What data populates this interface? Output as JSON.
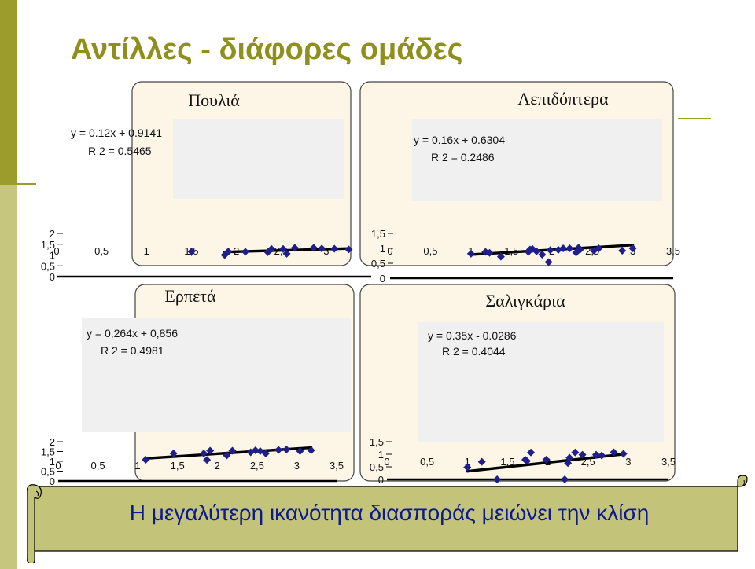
{
  "slide": {
    "title": "Αντίλλες - διάφορες ομάδες",
    "conclusion": "Η μεγαλύτερη ικανότητα διασποράς μειώνει την κλίση"
  },
  "colors": {
    "accent": "#9c9c2c",
    "panel_bg": "#fdf5e6",
    "plot_bg": "#f0f0f0",
    "marker": "#1f1f8c",
    "text_blue": "#0b1a8c"
  },
  "chart_data": [
    {
      "type": "scatter",
      "title": "Πουλιά",
      "xlim": [
        0,
        3.5
      ],
      "ylim": [
        0,
        2
      ],
      "xticks": [
        "0",
        "0,5",
        "1",
        "1,5",
        "2",
        "2,5",
        "3",
        "3,5"
      ],
      "yticks": [
        "0",
        "0,5",
        "1",
        "1,5",
        "2"
      ],
      "x": [
        1.5,
        1.87,
        1.91,
        2.1,
        2.35,
        2.39,
        2.52,
        2.56,
        2.65,
        2.86,
        2.95,
        3.09,
        3.25
      ],
      "y": [
        1.16,
        1.0,
        1.16,
        1.15,
        1.13,
        1.28,
        1.28,
        1.06,
        1.33,
        1.33,
        1.3,
        1.29,
        1.26
      ],
      "trendline": {
        "slope": 0.12,
        "intercept": 0.9141,
        "x_range": [
          1.87,
          3.25
        ]
      },
      "equation": "y = 0.12x + 0.9141",
      "r_squared": "R 2 = 0.5465"
    },
    {
      "type": "scatter",
      "title": "Λεπιδόπτερα",
      "xlim": [
        0,
        3.5
      ],
      "ylim": [
        0,
        1.5
      ],
      "xticks": [
        "0",
        "0,5",
        "1",
        "1,5",
        "2",
        "2,5",
        "3",
        "3,5"
      ],
      "yticks": [
        "0",
        "0,5",
        "1",
        "1,5"
      ],
      "x": [
        1.0,
        1.18,
        1.23,
        1.37,
        1.71,
        1.73,
        1.76,
        1.81,
        1.88,
        1.96,
        1.98,
        2.08,
        2.14,
        2.22,
        2.3,
        2.33,
        2.35,
        2.52,
        2.58,
        2.87,
        3.0
      ],
      "y": [
        0.82,
        0.88,
        0.85,
        0.72,
        0.88,
        0.96,
        0.98,
        0.9,
        0.79,
        0.54,
        0.94,
        0.95,
        1.0,
        1.0,
        0.86,
        1.02,
        0.96,
        0.92,
        1.0,
        0.92,
        1.0
      ],
      "trendline": {
        "slope": 0.16,
        "intercept": 0.6304,
        "x_range": [
          1.0,
          3.0
        ]
      },
      "equation": "y = 0.16x + 0.6304",
      "r_squared": "R 2 = 0.2486"
    },
    {
      "type": "scatter",
      "title": "Ερπετά",
      "xlim": [
        0,
        3.5
      ],
      "ylim": [
        0,
        2
      ],
      "xticks": [
        "0",
        "0,5",
        "1",
        "1,5",
        "2",
        "2,5",
        "3",
        "3,5"
      ],
      "yticks": [
        "0",
        "0,5",
        "1",
        "1,5",
        "2"
      ],
      "x": [
        1.1,
        1.45,
        1.83,
        1.87,
        1.91,
        2.12,
        2.19,
        2.42,
        2.48,
        2.54,
        2.61,
        2.77,
        2.87,
        3.04,
        3.18
      ],
      "y": [
        1.08,
        1.4,
        1.4,
        1.07,
        1.54,
        1.3,
        1.54,
        1.46,
        1.56,
        1.52,
        1.4,
        1.58,
        1.6,
        1.52,
        1.56
      ],
      "trendline": {
        "slope": 0.264,
        "intercept": 0.856,
        "x_range": [
          1.1,
          3.18
        ]
      },
      "equation": "y = 0,264x + 0,856",
      "r_squared": "R 2 = 0,4981"
    },
    {
      "type": "scatter",
      "title": "Σαλιγκάρια",
      "xlim": [
        0,
        3.5
      ],
      "ylim": [
        0,
        1.5
      ],
      "xticks": [
        "0",
        "0,5",
        "1",
        "1,5",
        "2",
        "2,5",
        "3",
        "3,5"
      ],
      "yticks": [
        "0",
        "0,5",
        "1",
        "1,5"
      ],
      "x": [
        1.0,
        1.18,
        1.37,
        1.72,
        1.74,
        1.79,
        1.98,
        2.21,
        2.25,
        2.27,
        2.34,
        2.43,
        2.6,
        2.67,
        2.82,
        2.94
      ],
      "y": [
        0.48,
        0.7,
        0.0,
        0.78,
        0.73,
        1.07,
        0.78,
        0.0,
        0.65,
        0.86,
        1.07,
        0.98,
        0.98,
        0.95,
        1.08,
        1.02
      ],
      "trendline": {
        "slope": 0.35,
        "intercept": -0.0286,
        "x_range": [
          1.0,
          2.94
        ]
      },
      "equation": "y = 0.35x - 0.0286",
      "r_squared": "R 2 = 0.4044"
    }
  ]
}
